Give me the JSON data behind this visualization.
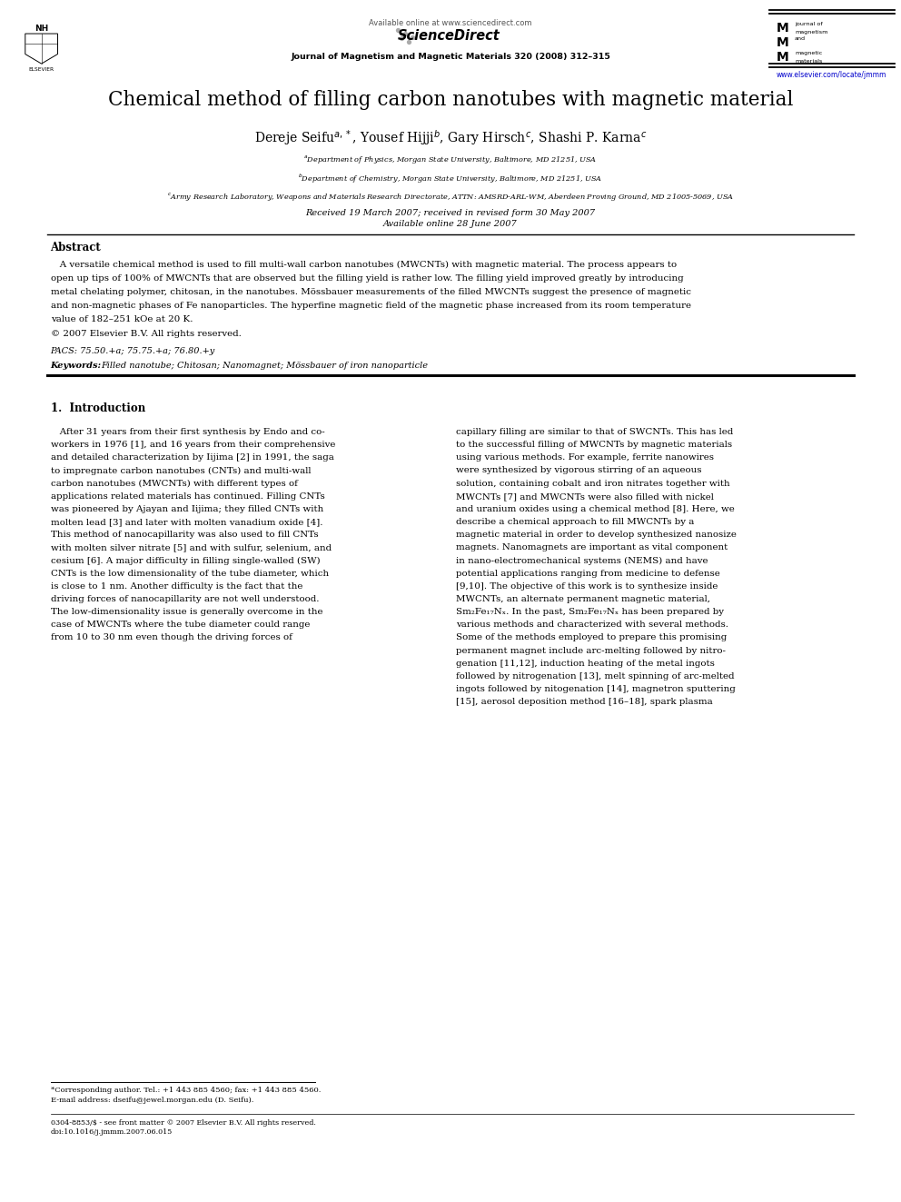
{
  "background_color": "#ffffff",
  "page_width": 9.92,
  "page_height": 13.23,
  "available_online": "Available online at www.sciencedirect.com",
  "journal_line": "Journal of Magnetism and Magnetic Materials 320 (2008) 312–315",
  "url": "www.elsevier.com/locate/jmmm",
  "title": "Chemical method of filling carbon nanotubes with magnetic material",
  "received": "Received 19 March 2007; received in revised form 30 May 2007",
  "available_online_date": "Available online 28 June 2007",
  "abstract_label": "Abstract",
  "pacs": "PACS: 75.50.+a; 75.75.+a; 76.80.+y",
  "keywords_bold": "Keywords: ",
  "keywords_rest": "Filled nanotube; Chitosan; Nanomagnet; Mössbauer of iron nanoparticle",
  "section1_title": "1.  Introduction",
  "footnote1": "*Corresponding author. Tel.: +1 443 885 4560; fax: +1 443 885 4560.",
  "footnote2": "E-mail address: dseifu@jewel.morgan.edu (D. Seifu).",
  "footer1": "0304-8853/$ - see front matter © 2007 Elsevier B.V. All rights reserved.",
  "footer2": "doi:10.1016/j.jmmm.2007.06.015",
  "abs_lines": [
    "   A versatile chemical method is used to fill multi-wall carbon nanotubes (MWCNTs) with magnetic material. The process appears to",
    "open up tips of 100% of MWCNTs that are observed but the filling yield is rather low. The filling yield improved greatly by introducing",
    "metal chelating polymer, chitosan, in the nanotubes. Mössbauer measurements of the filled MWCNTs suggest the presence of magnetic",
    "and non-magnetic phases of Fe nanoparticles. The hyperfine magnetic field of the magnetic phase increased from its room temperature",
    "value of 182–251 kOe at 20 K.",
    "© 2007 Elsevier B.V. All rights reserved."
  ],
  "affs": [
    "$^a$Department of Physics, Morgan State University, Baltimore, MD 21251, USA",
    "$^b$Department of Chemistry, Morgan State University, Baltimore, MD 21251, USA",
    "$^c$Army Research Laboratory, Weapons and Materials Research Directorate, ATTN: AMSRD-ARL-WM, Aberdeen Proving Ground, MD 21005-5069, USA"
  ],
  "col1_lines": [
    "   After 31 years from their first synthesis by Endo and co-",
    "workers in 1976 [1], and 16 years from their comprehensive",
    "and detailed characterization by Iijima [2] in 1991, the saga",
    "to impregnate carbon nanotubes (CNTs) and multi-wall",
    "carbon nanotubes (MWCNTs) with different types of",
    "applications related materials has continued. Filling CNTs",
    "was pioneered by Ajayan and Iijima; they filled CNTs with",
    "molten lead [3] and later with molten vanadium oxide [4].",
    "This method of nanocapillarity was also used to fill CNTs",
    "with molten silver nitrate [5] and with sulfur, selenium, and",
    "cesium [6]. A major difficulty in filling single-walled (SW)",
    "CNTs is the low dimensionality of the tube diameter, which",
    "is close to 1 nm. Another difficulty is the fact that the",
    "driving forces of nanocapillarity are not well understood.",
    "The low-dimensionality issue is generally overcome in the",
    "case of MWCNTs where the tube diameter could range",
    "from 10 to 30 nm even though the driving forces of"
  ],
  "col2_lines": [
    "capillary filling are similar to that of SWCNTs. This has led",
    "to the successful filling of MWCNTs by magnetic materials",
    "using various methods. For example, ferrite nanowires",
    "were synthesized by vigorous stirring of an aqueous",
    "solution, containing cobalt and iron nitrates together with",
    "MWCNTs [7] and MWCNTs were also filled with nickel",
    "and uranium oxides using a chemical method [8]. Here, we",
    "describe a chemical approach to fill MWCNTs by a",
    "magnetic material in order to develop synthesized nanosize",
    "magnets. Nanomagnets are important as vital component",
    "in nano-electromechanical systems (NEMS) and have",
    "potential applications ranging from medicine to defense",
    "[9,10]. The objective of this work is to synthesize inside",
    "MWCNTs, an alternate permanent magnetic material,",
    "Sm₂Fe₁₇Nₓ. In the past, Sm₂Fe₁₇Nₓ has been prepared by",
    "various methods and characterized with several methods.",
    "Some of the methods employed to prepare this promising",
    "permanent magnet include arc-melting followed by nitro-",
    "genation [11,12], induction heating of the metal ingots",
    "followed by nitrogenation [13], melt spinning of arc-melted",
    "ingots followed by nitogenation [14], magnetron sputtering",
    "[15], aerosol deposition method [16–18], spark plasma"
  ]
}
